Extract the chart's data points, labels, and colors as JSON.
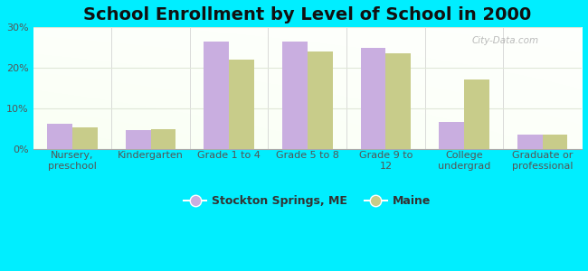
{
  "title": "School Enrollment by Level of School in 2000",
  "categories": [
    "Nursery,\npreschool",
    "Kindergarten",
    "Grade 1 to 4",
    "Grade 5 to 8",
    "Grade 9 to\n12",
    "College\nundergrad",
    "Graduate or\nprofessional"
  ],
  "stockton_values": [
    6.2,
    4.5,
    26.5,
    26.5,
    25.0,
    6.5,
    3.5
  ],
  "maine_values": [
    5.2,
    4.8,
    22.0,
    24.0,
    23.5,
    17.0,
    3.5
  ],
  "stockton_color": "#c9aee0",
  "maine_color": "#c8cc8a",
  "background_outer": "#00eeff",
  "ylim": [
    0,
    30
  ],
  "yticks": [
    0,
    10,
    20,
    30
  ],
  "ytick_labels": [
    "0%",
    "10%",
    "20%",
    "30%"
  ],
  "legend_label_stockton": "Stockton Springs, ME",
  "legend_label_maine": "Maine",
  "title_fontsize": 14,
  "tick_fontsize": 8,
  "legend_fontsize": 9,
  "bar_width": 0.32,
  "grid_color": "#e0e8d8",
  "watermark": "City-Data.com"
}
